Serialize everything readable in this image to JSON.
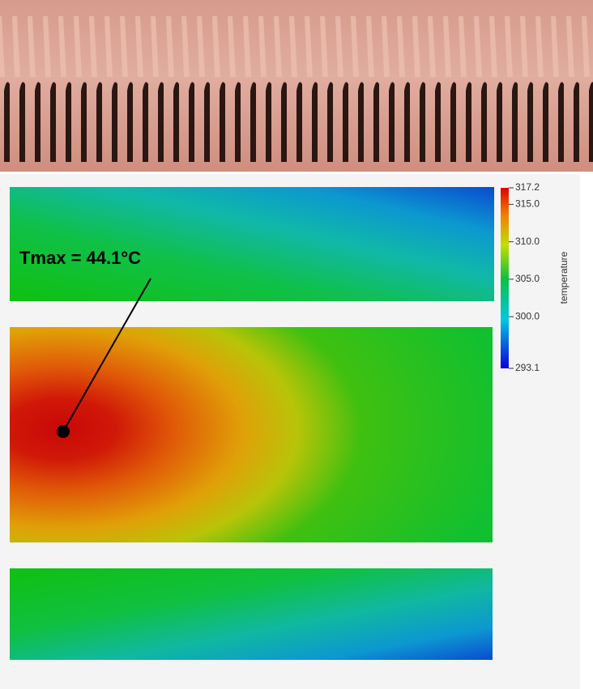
{
  "annotation": "Tmax = 44.1°C",
  "colorbar": {
    "label": "temperature",
    "lim": [
      293.1,
      317.2
    ],
    "ticks": [
      293.1,
      {
        "value": 300,
        "label": "300.0"
      },
      {
        "value": 305,
        "label": "305.0"
      },
      {
        "value": 310,
        "label": "310.0"
      },
      {
        "value": 315,
        "label": "315.0"
      },
      317.2
    ]
  }
}
